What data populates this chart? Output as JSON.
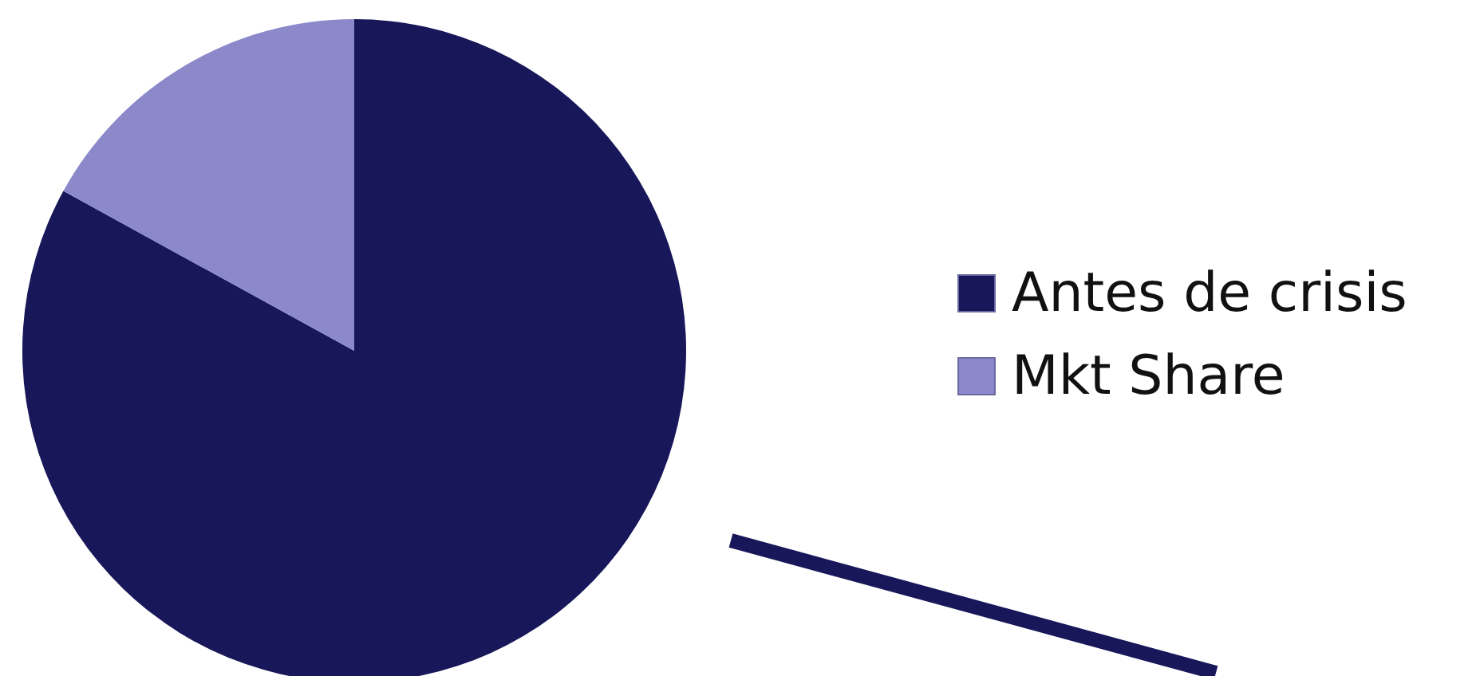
{
  "chart_data": {
    "type": "pie",
    "categories": [
      "Antes de crisis",
      "Mkt Share"
    ],
    "values": [
      83,
      17
    ],
    "colors": [
      "#18175a",
      "#8c89cb"
    ],
    "legend": "right"
  }
}
